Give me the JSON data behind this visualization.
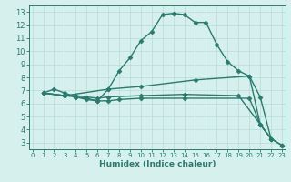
{
  "lines": [
    {
      "x": [
        1,
        2,
        3,
        4,
        5,
        6,
        7,
        8,
        9,
        10,
        11,
        12,
        13,
        14,
        15,
        16,
        17,
        18,
        19,
        20,
        21,
        22
      ],
      "y": [
        6.8,
        7.1,
        6.8,
        6.5,
        6.3,
        6.2,
        7.1,
        8.5,
        9.5,
        10.8,
        11.5,
        12.8,
        12.9,
        12.8,
        12.2,
        12.2,
        10.5,
        9.2,
        8.5,
        8.1,
        4.4,
        3.3
      ]
    },
    {
      "x": [
        1,
        3,
        7,
        10,
        15,
        20,
        21,
        22
      ],
      "y": [
        6.8,
        6.6,
        7.1,
        7.3,
        7.8,
        8.1,
        6.5,
        3.3
      ]
    },
    {
      "x": [
        1,
        3,
        4,
        5,
        6,
        7,
        10,
        14,
        19,
        21,
        22,
        23
      ],
      "y": [
        6.8,
        6.6,
        6.6,
        6.5,
        6.4,
        6.5,
        6.6,
        6.7,
        6.6,
        4.4,
        3.3,
        2.8
      ]
    },
    {
      "x": [
        1,
        3,
        4,
        5,
        6,
        7,
        8,
        10,
        14,
        20,
        21,
        22,
        23
      ],
      "y": [
        6.8,
        6.6,
        6.5,
        6.4,
        6.2,
        6.2,
        6.3,
        6.4,
        6.4,
        6.4,
        4.4,
        3.3,
        2.8
      ]
    }
  ],
  "xlim": [
    -0.3,
    23.3
  ],
  "ylim": [
    2.5,
    13.5
  ],
  "xticks": [
    0,
    1,
    2,
    3,
    4,
    5,
    6,
    7,
    8,
    9,
    10,
    11,
    12,
    13,
    14,
    15,
    16,
    17,
    18,
    19,
    20,
    21,
    22,
    23
  ],
  "yticks": [
    3,
    4,
    5,
    6,
    7,
    8,
    9,
    10,
    11,
    12,
    13
  ],
  "xlabel": "Humidex (Indice chaleur)",
  "bg_color": "#d6f0ee",
  "grid_color": "#b8dbd8",
  "line_color": "#2a7a6e",
  "tick_color": "#2a7a6e",
  "label_color": "#2a7a6e",
  "marker": "D",
  "markersize": 2.5,
  "linewidth": 1.0
}
